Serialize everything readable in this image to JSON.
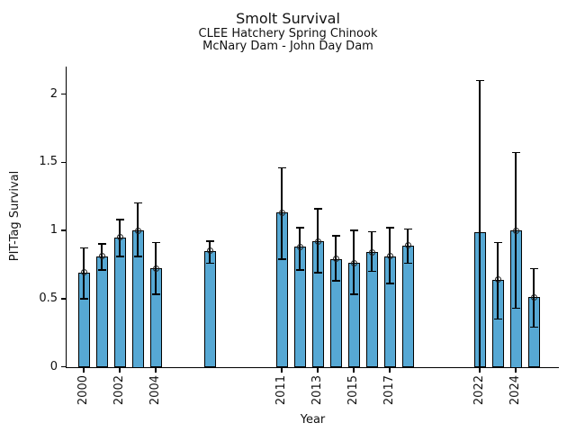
{
  "chart_data": {
    "type": "bar",
    "title": "Smolt Survival",
    "subtitle1": "CLEE Hatchery Spring Chinook",
    "subtitle2": "McNary Dam - John Day Dam",
    "xlabel": "Year",
    "ylabel": "PIT-Tag Survival",
    "ylim": [
      0,
      2.2
    ],
    "xlim": [
      1999,
      2026.5
    ],
    "grid": false,
    "legend": "none",
    "bar_color": "#56A8D4",
    "bar_edge_color": "#000000",
    "error_bar_color": "#000000",
    "yticks": [
      0,
      0.5,
      1,
      1.5,
      2
    ],
    "ytick_labels": [
      "0",
      "0.5",
      "1",
      "1.5",
      "2"
    ],
    "xtick_labels": [
      "2000",
      "2002",
      "2004",
      "2011",
      "2013",
      "2015",
      "2017",
      "2022",
      "2024"
    ],
    "points": [
      {
        "year": 2000,
        "value": 0.69,
        "lo": 0.5,
        "hi": 0.87
      },
      {
        "year": 2001,
        "value": 0.81,
        "lo": 0.71,
        "hi": 0.9
      },
      {
        "year": 2002,
        "value": 0.95,
        "lo": 0.81,
        "hi": 1.08
      },
      {
        "year": 2003,
        "value": 1.0,
        "lo": 0.81,
        "hi": 1.2
      },
      {
        "year": 2004,
        "value": 0.72,
        "lo": 0.53,
        "hi": 0.91
      },
      {
        "year": 2007,
        "value": 0.85,
        "lo": 0.76,
        "hi": 0.92
      },
      {
        "year": 2011,
        "value": 1.13,
        "lo": 0.79,
        "hi": 1.46
      },
      {
        "year": 2012,
        "value": 0.88,
        "lo": 0.71,
        "hi": 1.02
      },
      {
        "year": 2013,
        "value": 0.92,
        "lo": 0.69,
        "hi": 1.16
      },
      {
        "year": 2014,
        "value": 0.79,
        "lo": 0.63,
        "hi": 0.96
      },
      {
        "year": 2015,
        "value": 0.76,
        "lo": 0.53,
        "hi": 1.0
      },
      {
        "year": 2016,
        "value": 0.84,
        "lo": 0.7,
        "hi": 0.99
      },
      {
        "year": 2017,
        "value": 0.81,
        "lo": 0.61,
        "hi": 1.02
      },
      {
        "year": 2018,
        "value": 0.89,
        "lo": 0.76,
        "hi": 1.01
      },
      {
        "year": 2022,
        "value": 0.99,
        "lo": 0.0,
        "hi": 2.1,
        "marker": false
      },
      {
        "year": 2023,
        "value": 0.64,
        "lo": 0.35,
        "hi": 0.91
      },
      {
        "year": 2024,
        "value": 1.0,
        "lo": 0.43,
        "hi": 1.57
      },
      {
        "year": 2025,
        "value": 0.51,
        "lo": 0.29,
        "hi": 0.72
      }
    ]
  }
}
